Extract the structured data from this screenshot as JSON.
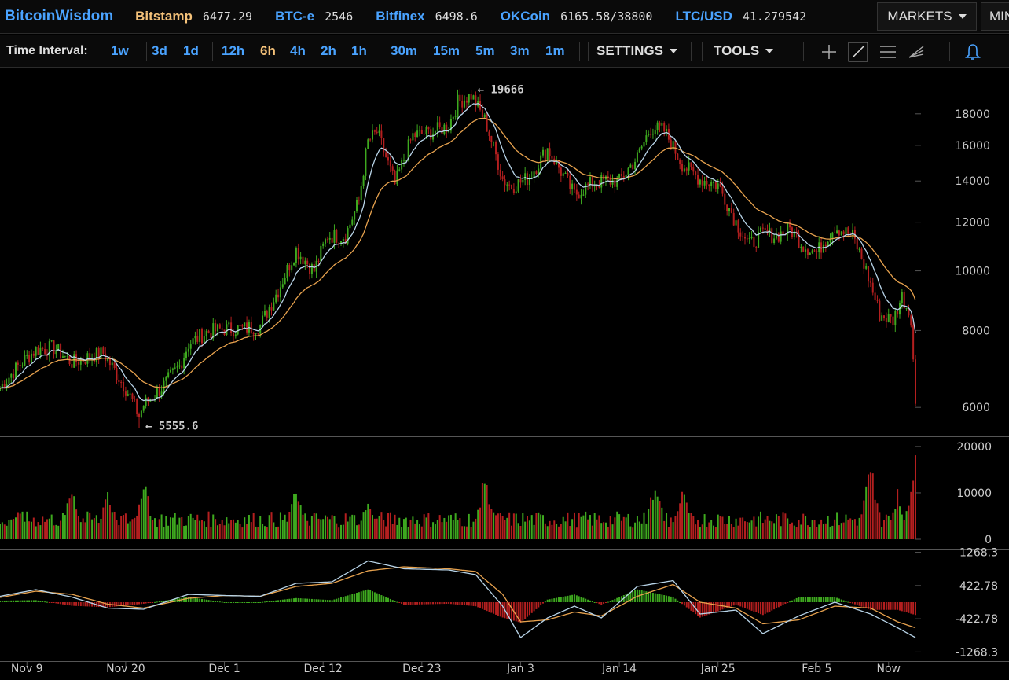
{
  "brand": "BitcoinWisdom",
  "ticker": [
    {
      "name": "Bitstamp",
      "price": "6477.29",
      "active": true
    },
    {
      "name": "BTC-e",
      "price": "2546",
      "active": false
    },
    {
      "name": "Bitfinex",
      "price": "6498.6",
      "active": false
    },
    {
      "name": "OKCoin",
      "price": "6165.58/38800",
      "active": false
    },
    {
      "name": "LTC/USD",
      "price": "41.279542",
      "active": false
    }
  ],
  "markets_label": "MARKETS",
  "min_label": "MIN",
  "toolbar": {
    "time_interval_label": "Time Interval:",
    "intervals": [
      "1w",
      "3d",
      "1d",
      "12h",
      "6h",
      "4h",
      "2h",
      "1h",
      "30m",
      "15m",
      "5m",
      "3m",
      "1m"
    ],
    "active_interval": "6h",
    "settings_label": "SETTINGS",
    "tools_label": "TOOLS"
  },
  "icons": [
    "crosshair-icon",
    "trendline-icon",
    "horizontal-lines-icon",
    "fibonacci-icon",
    "alert-bell-icon"
  ],
  "colors": {
    "background": "#000000",
    "up_candle": "#3ea91f",
    "down_candle": "#b41f1f",
    "ma_fast": "#b8d4e8",
    "ma_slow": "#e7a24e",
    "accent": "#4aa3ff",
    "active_interval": "#f5c27a"
  },
  "chart_data": {
    "type": "candlestick",
    "instrument": "Bitstamp",
    "interval": "6h",
    "x_ticks": [
      "Nov 9",
      "Nov 20",
      "Dec 1",
      "Dec 12",
      "Dec 23",
      "Jan 3",
      "Jan 14",
      "Jan 25",
      "Feb 5",
      "Now"
    ],
    "x_tick_positions_days": [
      0,
      11,
      22,
      33,
      44,
      55,
      66,
      77,
      88,
      96
    ],
    "x_range_days": [
      -3,
      99
    ],
    "price_panel": {
      "y_ticks": [
        6000,
        8000,
        10000,
        12000,
        14000,
        16000,
        18000
      ],
      "y_scale": "log",
      "y_range": [
        5400,
        21400
      ],
      "annotations": [
        {
          "text": "← 19666",
          "value": 19666,
          "kind": "high"
        },
        {
          "text": "← 5555.6",
          "value": 5555.6,
          "kind": "low"
        }
      ],
      "close_path": [
        {
          "day": -3,
          "price": 6450
        },
        {
          "day": -1,
          "price": 7000
        },
        {
          "day": 1,
          "price": 7450
        },
        {
          "day": 3,
          "price": 7500
        },
        {
          "day": 5,
          "price": 7100
        },
        {
          "day": 7,
          "price": 7250
        },
        {
          "day": 8.5,
          "price": 7350
        },
        {
          "day": 10,
          "price": 6800
        },
        {
          "day": 11.5,
          "price": 6250
        },
        {
          "day": 12.5,
          "price": 5800
        },
        {
          "day": 13,
          "price": 6050
        },
        {
          "day": 15,
          "price": 6450
        },
        {
          "day": 17,
          "price": 7000
        },
        {
          "day": 18,
          "price": 7600
        },
        {
          "day": 20,
          "price": 7950
        },
        {
          "day": 22,
          "price": 8050
        },
        {
          "day": 24,
          "price": 8050
        },
        {
          "day": 26,
          "price": 8150
        },
        {
          "day": 28,
          "price": 9300
        },
        {
          "day": 30,
          "price": 10800
        },
        {
          "day": 32,
          "price": 10000
        },
        {
          "day": 33.5,
          "price": 11400
        },
        {
          "day": 35.5,
          "price": 11400
        },
        {
          "day": 37,
          "price": 13000
        },
        {
          "day": 38,
          "price": 16200
        },
        {
          "day": 39,
          "price": 16800
        },
        {
          "day": 41,
          "price": 13800
        },
        {
          "day": 43,
          "price": 16600
        },
        {
          "day": 45,
          "price": 16800
        },
        {
          "day": 47,
          "price": 17200
        },
        {
          "day": 48,
          "price": 18800
        },
        {
          "day": 49.5,
          "price": 19300
        },
        {
          "day": 51,
          "price": 17600
        },
        {
          "day": 53,
          "price": 14100
        },
        {
          "day": 54,
          "price": 13700
        },
        {
          "day": 56,
          "price": 14200
        },
        {
          "day": 58,
          "price": 15800
        },
        {
          "day": 59.5,
          "price": 14500
        },
        {
          "day": 61,
          "price": 13300
        },
        {
          "day": 63,
          "price": 13900
        },
        {
          "day": 64.5,
          "price": 14000
        },
        {
          "day": 66,
          "price": 14000
        },
        {
          "day": 68,
          "price": 15300
        },
        {
          "day": 69.5,
          "price": 17100
        },
        {
          "day": 71,
          "price": 16900
        },
        {
          "day": 73,
          "price": 14900
        },
        {
          "day": 75,
          "price": 14100
        },
        {
          "day": 77,
          "price": 13800
        },
        {
          "day": 79,
          "price": 12000
        },
        {
          "day": 80.5,
          "price": 11000
        },
        {
          "day": 82,
          "price": 11500
        },
        {
          "day": 83.5,
          "price": 11400
        },
        {
          "day": 85,
          "price": 11700
        },
        {
          "day": 86.5,
          "price": 11000
        },
        {
          "day": 88,
          "price": 10700
        },
        {
          "day": 90,
          "price": 11800
        },
        {
          "day": 92,
          "price": 11400
        },
        {
          "day": 93.5,
          "price": 10000
        },
        {
          "day": 95,
          "price": 8500
        },
        {
          "day": 96.5,
          "price": 8300
        },
        {
          "day": 97.5,
          "price": 9100
        },
        {
          "day": 98.5,
          "price": 8400
        },
        {
          "day": 99,
          "price": 6000
        }
      ]
    },
    "volume_panel": {
      "y_ticks": [
        0,
        10000,
        20000
      ],
      "y_range": [
        0,
        21000
      ],
      "spikes": [
        {
          "day": -1,
          "volume": 7000
        },
        {
          "day": 5,
          "volume": 13000
        },
        {
          "day": 9,
          "volume": 12000
        },
        {
          "day": 13,
          "volume": 14000
        },
        {
          "day": 30,
          "volume": 12000
        },
        {
          "day": 38,
          "volume": 9500
        },
        {
          "day": 51,
          "volume": 14500
        },
        {
          "day": 70,
          "volume": 14000
        },
        {
          "day": 73,
          "volume": 12000
        },
        {
          "day": 94,
          "volume": 18000
        },
        {
          "day": 97,
          "volume": 11000
        },
        {
          "day": 99,
          "volume": 20500
        }
      ]
    },
    "macd_panel": {
      "y_ticks": [
        1268.3,
        422.78,
        -422.78,
        -1268.3
      ],
      "y_range": [
        -1400,
        1400
      ],
      "macd_path": [
        {
          "day": -3,
          "value": 150
        },
        {
          "day": 1,
          "value": 320
        },
        {
          "day": 5,
          "value": 130
        },
        {
          "day": 9,
          "value": -150
        },
        {
          "day": 13,
          "value": -180
        },
        {
          "day": 18,
          "value": 200
        },
        {
          "day": 22,
          "value": 170
        },
        {
          "day": 26,
          "value": 150
        },
        {
          "day": 30,
          "value": 480
        },
        {
          "day": 34,
          "value": 520
        },
        {
          "day": 38,
          "value": 1050
        },
        {
          "day": 42,
          "value": 850
        },
        {
          "day": 47,
          "value": 820
        },
        {
          "day": 50,
          "value": 700
        },
        {
          "day": 53,
          "value": -100
        },
        {
          "day": 55,
          "value": -900
        },
        {
          "day": 58,
          "value": -400
        },
        {
          "day": 61,
          "value": -100
        },
        {
          "day": 64,
          "value": -400
        },
        {
          "day": 68,
          "value": 400
        },
        {
          "day": 72,
          "value": 550
        },
        {
          "day": 75,
          "value": -300
        },
        {
          "day": 79,
          "value": -200
        },
        {
          "day": 82,
          "value": -800
        },
        {
          "day": 86,
          "value": -350
        },
        {
          "day": 90,
          "value": 0
        },
        {
          "day": 94,
          "value": -300
        },
        {
          "day": 97,
          "value": -650
        },
        {
          "day": 99,
          "value": -900
        }
      ],
      "signal_path": [
        {
          "day": -3,
          "value": 120
        },
        {
          "day": 1,
          "value": 280
        },
        {
          "day": 5,
          "value": 200
        },
        {
          "day": 9,
          "value": -50
        },
        {
          "day": 13,
          "value": -150
        },
        {
          "day": 18,
          "value": 100
        },
        {
          "day": 22,
          "value": 170
        },
        {
          "day": 26,
          "value": 150
        },
        {
          "day": 30,
          "value": 400
        },
        {
          "day": 34,
          "value": 480
        },
        {
          "day": 38,
          "value": 800
        },
        {
          "day": 42,
          "value": 900
        },
        {
          "day": 47,
          "value": 850
        },
        {
          "day": 50,
          "value": 780
        },
        {
          "day": 53,
          "value": 200
        },
        {
          "day": 55,
          "value": -500
        },
        {
          "day": 58,
          "value": -450
        },
        {
          "day": 61,
          "value": -250
        },
        {
          "day": 64,
          "value": -350
        },
        {
          "day": 68,
          "value": 150
        },
        {
          "day": 72,
          "value": 450
        },
        {
          "day": 75,
          "value": 0
        },
        {
          "day": 79,
          "value": -150
        },
        {
          "day": 82,
          "value": -550
        },
        {
          "day": 86,
          "value": -450
        },
        {
          "day": 90,
          "value": -100
        },
        {
          "day": 94,
          "value": -150
        },
        {
          "day": 97,
          "value": -500
        },
        {
          "day": 99,
          "value": -650
        }
      ]
    }
  }
}
